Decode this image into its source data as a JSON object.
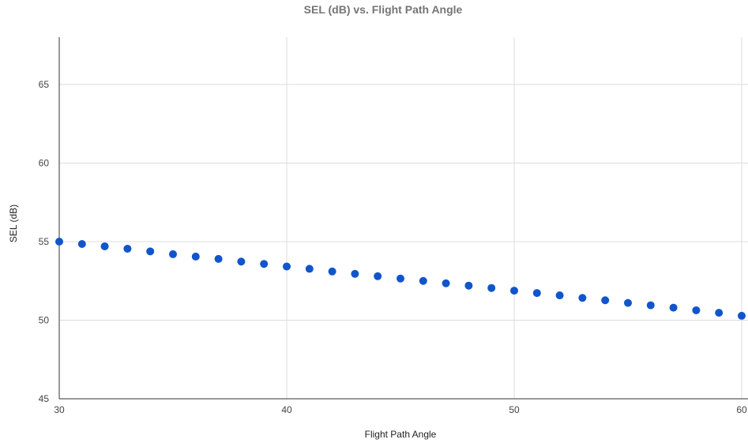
{
  "chart_data": {
    "type": "scatter",
    "title": "SEL (dB) vs. Flight Path Angle",
    "xlabel": "Flight Path Angle",
    "ylabel": "SEL (dB)",
    "xlim": [
      30,
      60
    ],
    "ylim": [
      45,
      68
    ],
    "xticks": [
      30,
      40,
      50,
      60
    ],
    "yticks": [
      45,
      50,
      55,
      60,
      65
    ],
    "grid": true,
    "legend": "none",
    "marker_color": "#1155cc",
    "series": [
      {
        "x": [
          30,
          31,
          32,
          33,
          34,
          35,
          36,
          37,
          38,
          39,
          40,
          41,
          42,
          43,
          44,
          45,
          46,
          47,
          48,
          49,
          50,
          51,
          52,
          53,
          54,
          55,
          56,
          57,
          58,
          59,
          60
        ],
        "y": [
          55.0,
          54.85,
          54.7,
          54.55,
          54.38,
          54.2,
          54.05,
          53.9,
          53.73,
          53.58,
          53.42,
          53.27,
          53.1,
          52.95,
          52.8,
          52.65,
          52.5,
          52.35,
          52.2,
          52.05,
          51.88,
          51.73,
          51.58,
          51.42,
          51.27,
          51.1,
          50.95,
          50.8,
          50.63,
          50.47,
          50.28
        ]
      }
    ]
  }
}
